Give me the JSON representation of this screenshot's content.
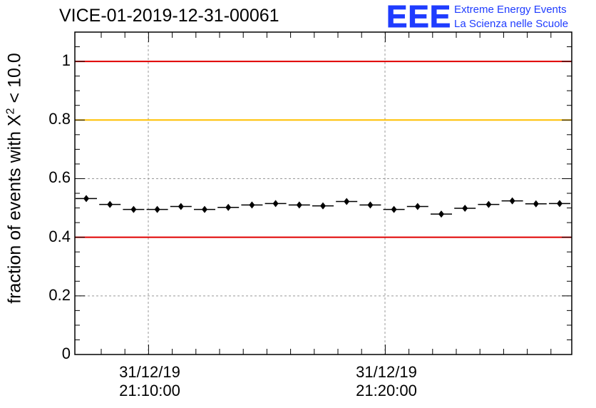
{
  "header": {
    "title": "VICE-01-2019-12-31-00061"
  },
  "logo": {
    "mark": "EEE",
    "line1": "Extreme Energy Events",
    "line2": "La Scienza nelle Scuole",
    "color": "#1f3cff"
  },
  "chart_data": {
    "type": "scatter",
    "title": "VICE-01-2019-12-31-00061",
    "ylabel_prefix": "fraction of events with X",
    "ylabel_sup": "2",
    "ylabel_suffix": " < 10.0",
    "xlabel": "",
    "ylim": [
      0,
      1.1
    ],
    "yticks": [
      "0",
      "0.2",
      "0.4",
      "0.6",
      "0.8",
      "1"
    ],
    "ytick_values": [
      0,
      0.2,
      0.4,
      0.6,
      0.8,
      1.0
    ],
    "xtick_labels": [
      {
        "date": "31/12/19",
        "time": "21:10:00"
      },
      {
        "date": "31/12/19",
        "time": "21:20:00"
      }
    ],
    "grid": true,
    "reference_lines": [
      {
        "y": 1.0,
        "color": "#e00000"
      },
      {
        "y": 0.8,
        "color": "#ffc000"
      },
      {
        "y": 0.4,
        "color": "#e00000"
      }
    ],
    "series": [
      {
        "marker": "diamond",
        "color": "#000000",
        "values": [
          0.532,
          0.512,
          0.495,
          0.495,
          0.505,
          0.495,
          0.502,
          0.51,
          0.515,
          0.51,
          0.507,
          0.522,
          0.51,
          0.495,
          0.505,
          0.479,
          0.499,
          0.512,
          0.524,
          0.514,
          0.515
        ]
      }
    ]
  }
}
